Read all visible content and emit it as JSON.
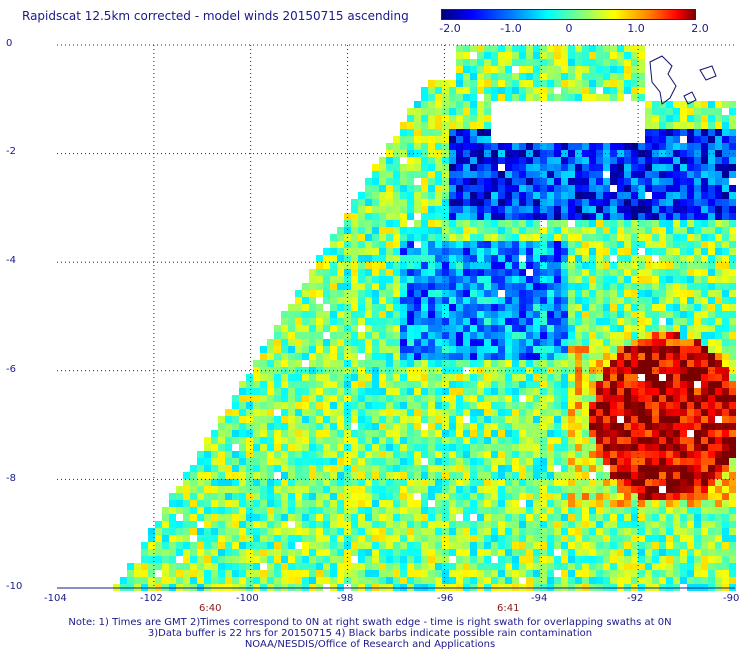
{
  "title": "Rapidscat 12.5km corrected - model winds 20150715 ascending",
  "colorbar": {
    "labels": [
      "-2.0",
      "-1.0",
      "0",
      "1.0",
      "2.0"
    ],
    "range": [
      -2.0,
      2.0
    ],
    "colors": [
      "#00007a",
      "#0000ff",
      "#0080ff",
      "#00ffff",
      "#80ff80",
      "#ffff00",
      "#ff8000",
      "#ff0000",
      "#7a0000"
    ]
  },
  "axes": {
    "x_ticks": [
      "-104",
      "-102",
      "-100",
      "-98",
      "-96",
      "-94",
      "-92",
      "-90"
    ],
    "y_ticks": [
      "0",
      "-2",
      "-4",
      "-6",
      "-8",
      "-10"
    ],
    "lon_range": [
      -104,
      -90
    ],
    "lat_range": [
      -10,
      0
    ],
    "grid": "dotted"
  },
  "times": [
    {
      "label": "6:40",
      "lon": -101.2
    },
    {
      "label": "6:41",
      "lon": -95.4
    }
  ],
  "notes": [
    "Note: 1) Times are GMT 2)Times correspond to 0N at right swath edge - time is right swath for overlapping swaths at 0N",
    "3)Data buffer is 22 hrs for 20150715 4) Black barbs indicate possible rain contamination",
    "NOAA/NESDIS/Office of Research and Applications"
  ]
}
